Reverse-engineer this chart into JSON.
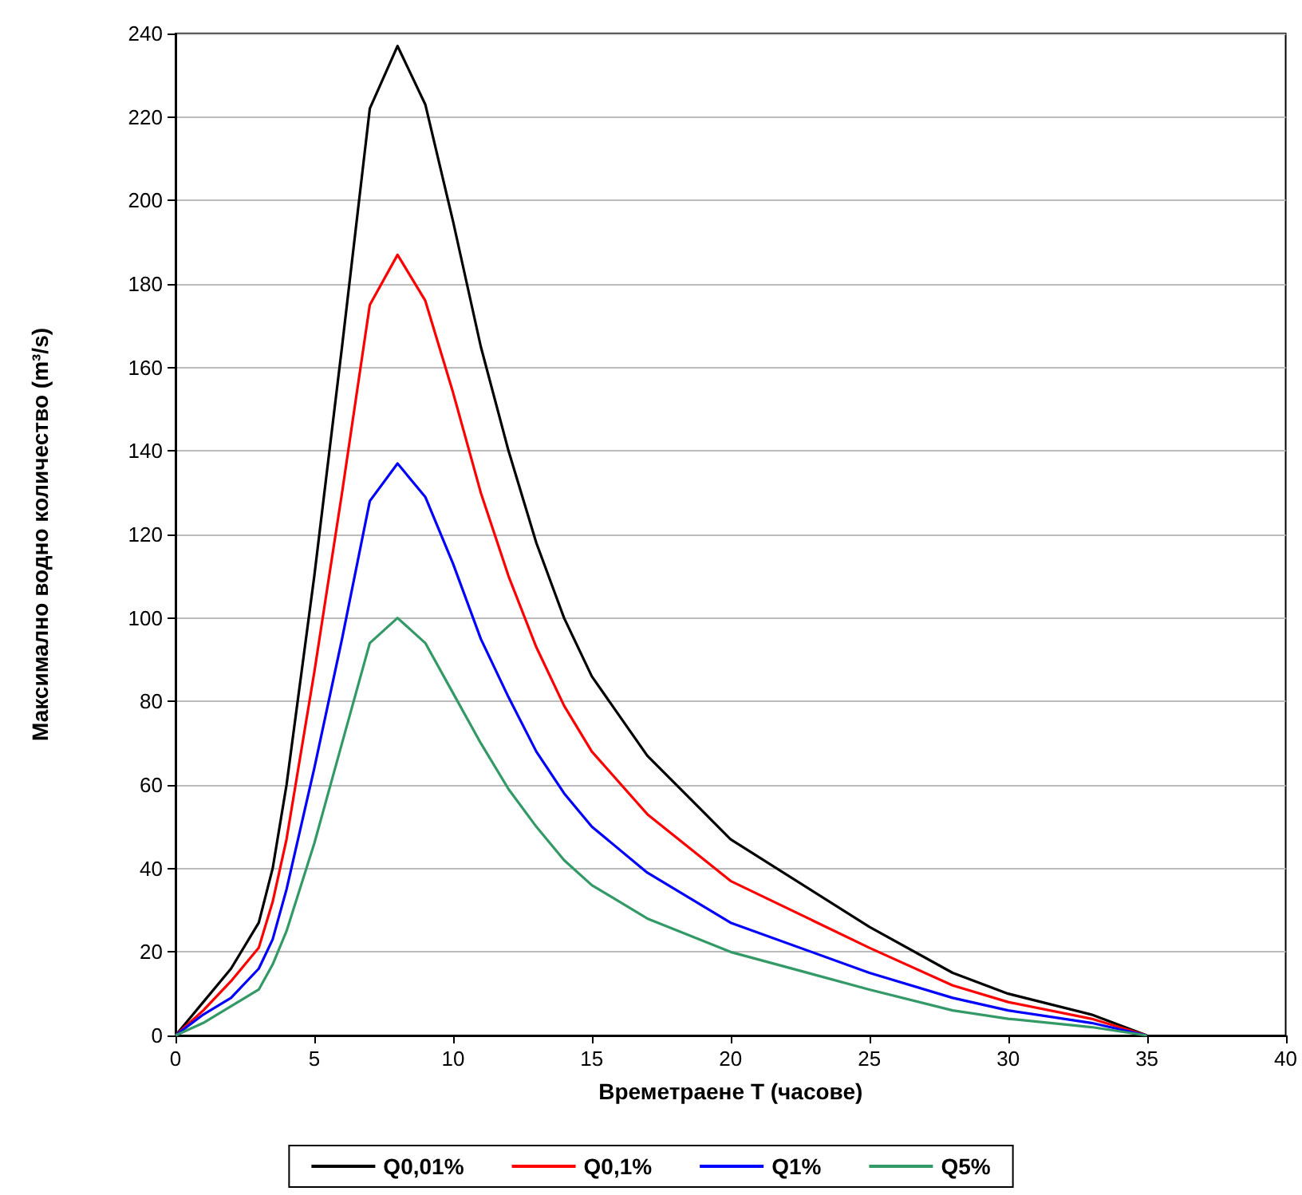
{
  "chart_data": {
    "type": "line",
    "xlabel": "Времетраене T (часове)",
    "ylabel": "Максимално водно количество (m³/s)",
    "xlim": [
      0,
      40
    ],
    "xticks": [
      0,
      5,
      10,
      15,
      20,
      25,
      30,
      35,
      40
    ],
    "ylim": [
      0,
      240
    ],
    "yticks": [
      0,
      20,
      40,
      60,
      80,
      100,
      120,
      140,
      160,
      180,
      200,
      220,
      240
    ],
    "grid": "y",
    "legend": "bottom",
    "marker": "none",
    "line_style": "solid",
    "x": [
      0,
      1,
      2,
      3,
      3.5,
      4,
      5,
      6,
      7,
      8,
      9,
      10,
      11,
      12,
      13,
      14,
      15,
      17,
      20,
      25,
      28,
      30,
      33,
      35
    ],
    "series": [
      {
        "name": "Q0,01%",
        "color": "#000000",
        "values": [
          0,
          8,
          16,
          27,
          40,
          60,
          110,
          165,
          222,
          237,
          223,
          195,
          165,
          140,
          118,
          100,
          86,
          67,
          47,
          26,
          15,
          10,
          5,
          0
        ]
      },
      {
        "name": "Q0,1%",
        "color": "#ff0000",
        "values": [
          0,
          6,
          13,
          21,
          32,
          47,
          87,
          130,
          175,
          187,
          176,
          154,
          130,
          110,
          93,
          79,
          68,
          53,
          37,
          21,
          12,
          8,
          4,
          0
        ]
      },
      {
        "name": "Q1%",
        "color": "#0000ff",
        "values": [
          0,
          5,
          9,
          16,
          23,
          35,
          64,
          95,
          128,
          137,
          129,
          113,
          95,
          81,
          68,
          58,
          50,
          39,
          27,
          15,
          9,
          6,
          3,
          0
        ]
      },
      {
        "name": "Q5%",
        "color": "#339966",
        "values": [
          0,
          3,
          7,
          11,
          17,
          25,
          46,
          70,
          94,
          100,
          94,
          82,
          70,
          59,
          50,
          42,
          36,
          28,
          20,
          11,
          6,
          4,
          2,
          0
        ]
      }
    ]
  }
}
